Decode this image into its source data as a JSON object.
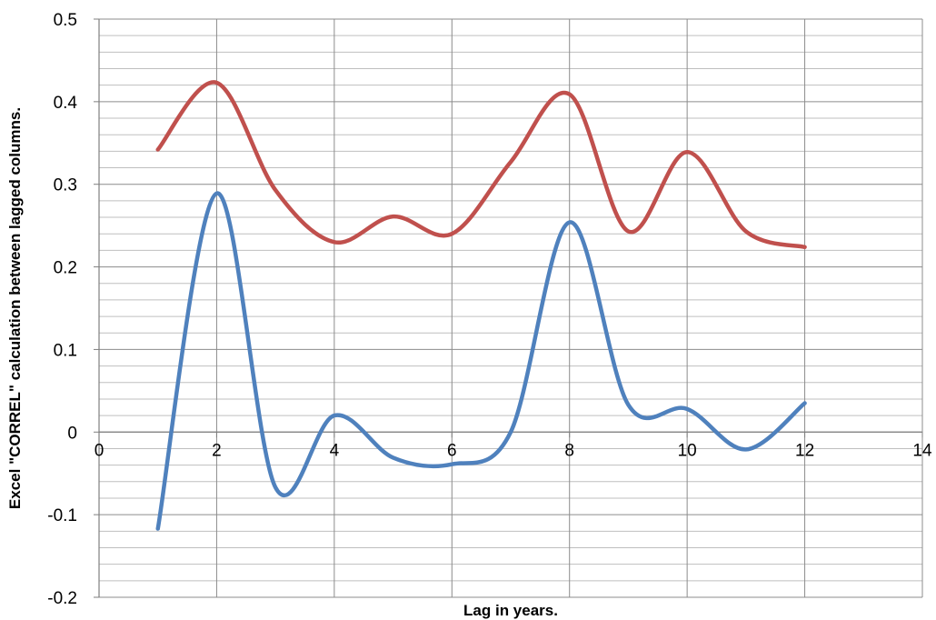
{
  "chart_data": {
    "type": "line",
    "title": "",
    "xlabel": "Lag in years.",
    "ylabel": "Excel \"CORREL\" calculation between lagged columns.",
    "xlim": [
      0,
      14
    ],
    "ylim": [
      -0.2,
      0.5
    ],
    "x_ticks": [
      "0",
      "2",
      "4",
      "6",
      "8",
      "10",
      "12",
      "14"
    ],
    "y_ticks": [
      "-0.2",
      "-0.1",
      "0",
      "0.1",
      "0.2",
      "0.3",
      "0.4",
      "0.5"
    ],
    "grid": true,
    "smooth": true,
    "legend": "none",
    "series": [
      {
        "color": "#c0504d",
        "x": [
          1,
          2,
          3,
          4,
          5,
          6,
          7,
          8,
          9,
          10,
          11,
          12
        ],
        "y": [
          0.342,
          0.423,
          0.293,
          0.23,
          0.261,
          0.24,
          0.327,
          0.409,
          0.243,
          0.339,
          0.243,
          0.224
        ]
      },
      {
        "color": "#4f81bd",
        "x": [
          1,
          2,
          3,
          4,
          5,
          6,
          7,
          8,
          9,
          10,
          11,
          12
        ],
        "y": [
          -0.117,
          0.289,
          -0.067,
          0.02,
          -0.031,
          -0.039,
          0.0,
          0.254,
          0.033,
          0.028,
          -0.021,
          0.035
        ]
      }
    ]
  }
}
